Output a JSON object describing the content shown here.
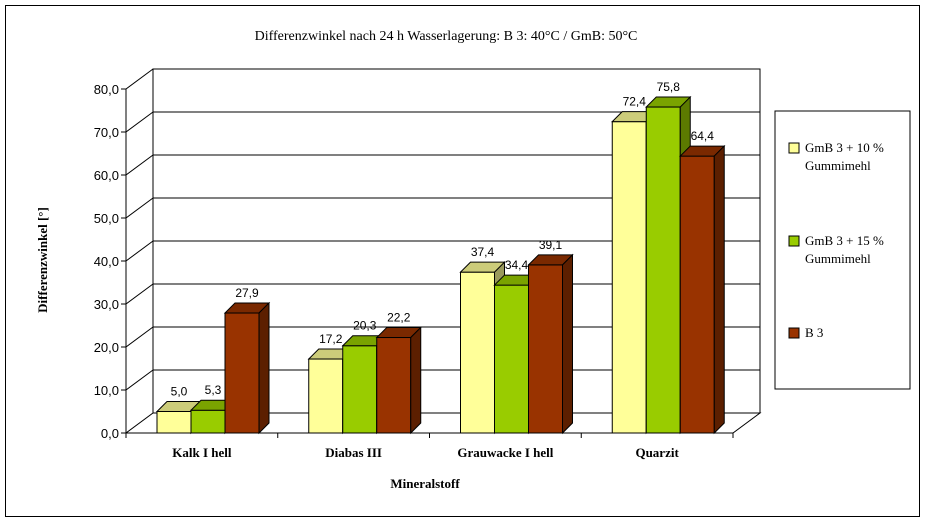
{
  "chart_data": {
    "type": "bar",
    "title": "Differenzwinkel nach 24 h Wasserlagerung:  B 3: 40°C   /   GmB: 50°C",
    "xlabel": "Mineralstoff",
    "ylabel": "Differenzwinkel [°]",
    "ylim": [
      0,
      80
    ],
    "ytick_labels": [
      "0,0",
      "10,0",
      "20,0",
      "30,0",
      "40,0",
      "50,0",
      "60,0",
      "70,0",
      "80,0"
    ],
    "ytick_values": [
      0,
      10,
      20,
      30,
      40,
      50,
      60,
      70,
      80
    ],
    "grid": true,
    "legend_position": "right",
    "categories": [
      "Kalk I  hell",
      "Diabas III",
      "Grauwacke I hell",
      "Quarzit"
    ],
    "series": [
      {
        "name": [
          "GmB 3 + 10 %",
          "Gummimehl"
        ],
        "color": "#ffff99",
        "values": [
          5.0,
          17.2,
          37.4,
          72.4
        ],
        "labels": [
          "5,0",
          "17,2",
          "37,4",
          "72,4"
        ]
      },
      {
        "name": [
          "GmB 3 + 15 %",
          "Gummimehl"
        ],
        "color": "#99cc00",
        "values": [
          5.3,
          20.3,
          34.4,
          75.8
        ],
        "labels": [
          "5,3",
          "20,3",
          "34,4",
          "75,8"
        ]
      },
      {
        "name": [
          "B 3"
        ],
        "color": "#993300",
        "values": [
          27.9,
          22.2,
          39.1,
          64.4
        ],
        "labels": [
          "27,9",
          "22,2",
          "39,1",
          "64,4"
        ]
      }
    ]
  }
}
